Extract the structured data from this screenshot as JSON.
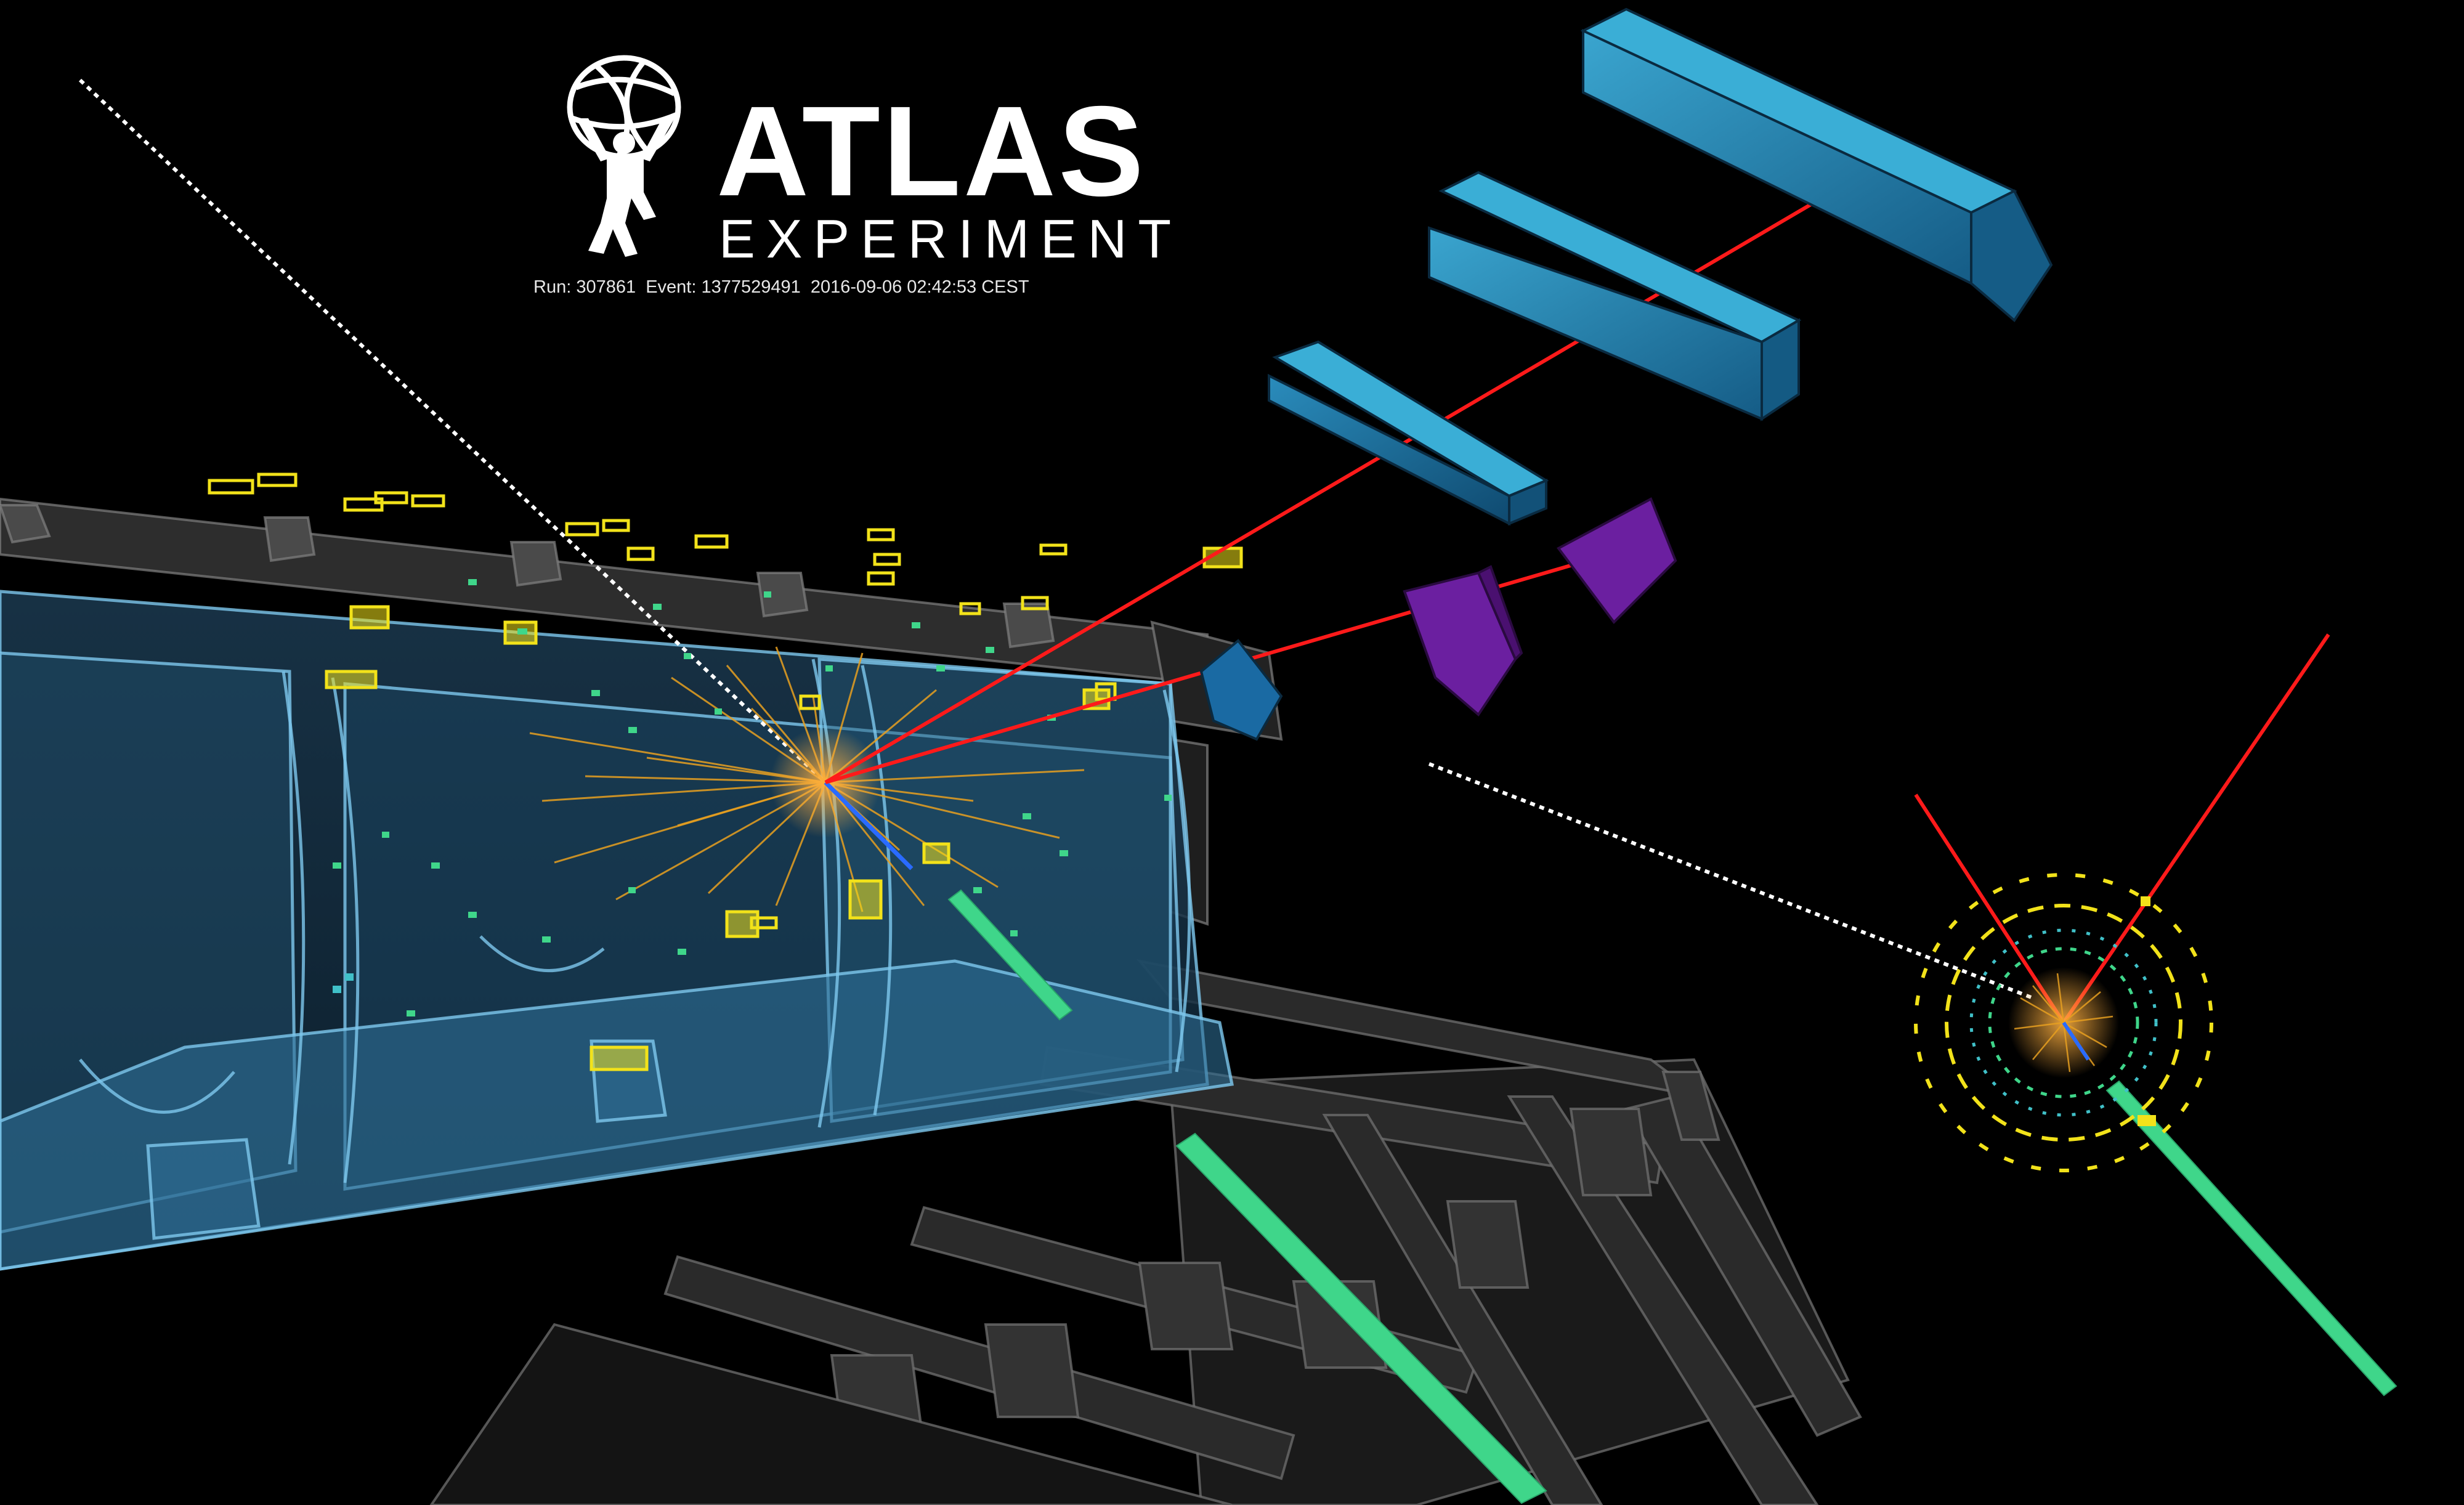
{
  "logo": {
    "name": "ATLAS",
    "subtitle": "EXPERIMENT"
  },
  "event_info": {
    "text": "Run: 307861  Event: 1377529491  2016-09-06 02:42:53 CEST"
  },
  "colors": {
    "background": "#000000",
    "muon_track": "#ff1a1a",
    "charged_tracks": "#e8a020",
    "calorimeter_cells": "#f2e21a",
    "jet_energy": "#3fd68a",
    "barrel_panels": "#5aa0c8",
    "muon_chambers_blue": "#1d7fb0",
    "muon_chambers_purple": "#6b1fa0",
    "missing_energy": "#ffffff"
  }
}
